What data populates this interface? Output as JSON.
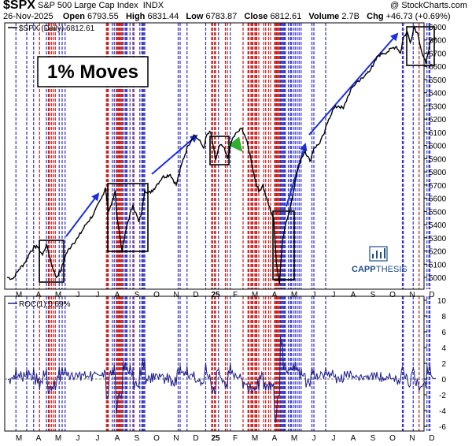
{
  "header": {
    "symbol": "$SPX",
    "name": "S&P 500 Large Cap Index",
    "exchange": "INDX",
    "credit": "@ StockCharts.com",
    "date": "26-Nov-2025",
    "open_label": "Open",
    "open": "6793.55",
    "high_label": "High",
    "high": "6831.44",
    "low_label": "Low",
    "low": "6783.87",
    "close_label": "Close",
    "close": "6812.61",
    "volume_label": "Volume",
    "volume": "2.7B",
    "chg_label": "Chg",
    "chg": "+46.73 (+0.69%)"
  },
  "annotations": {
    "title_box": "1% Moves",
    "logo_text_a": "CAPP",
    "logo_text_b": "THESIS"
  },
  "colors": {
    "up_line": "#3030c8",
    "down_line": "#c81818",
    "price": "#000000",
    "roc": "#1c1c8c",
    "arrow": "#1a2ee0",
    "green_arrow": "#2fae2f",
    "logo": "#1f4f86"
  },
  "chart_data": [
    {
      "type": "line",
      "series": [
        {
          "name": "$SPX (Daily) 6812.61"
        }
      ],
      "legend_text": "$SPX (Daily) 6812.61",
      "ylim": [
        4850,
        6950
      ],
      "yticks": [
        5000,
        5100,
        5200,
        5300,
        5400,
        5500,
        5600,
        5700,
        5800,
        5900,
        6000,
        6100,
        6200,
        6300,
        6400,
        6500,
        6600,
        6700,
        6800,
        6900
      ],
      "x_months": [
        "M",
        "A",
        "M",
        "J",
        "J",
        "A",
        "S",
        "O",
        "N",
        "D",
        "25",
        "F",
        "M",
        "A",
        "M",
        "J",
        "J",
        "A",
        "S",
        "O",
        "N",
        "D"
      ],
      "x_month_pos": [
        0.2,
        1.2,
        2.2,
        3.2,
        4.2,
        5.2,
        6.2,
        7.2,
        8.2,
        9.2,
        10.2,
        11.2,
        12.2,
        13.2,
        14.2,
        15.2,
        16.2,
        17.2,
        18.2,
        19.2,
        20.2,
        21.2
      ],
      "x_range": [
        0,
        21.8
      ],
      "anchors": [
        [
          0,
          5000
        ],
        [
          0.3,
          4990
        ],
        [
          0.6,
          5060
        ],
        [
          0.9,
          5110
        ],
        [
          1.2,
          5200
        ],
        [
          1.5,
          5240
        ],
        [
          1.8,
          5170
        ],
        [
          2.0,
          5250
        ],
        [
          2.3,
          5080
        ],
        [
          2.5,
          5000
        ],
        [
          2.75,
          5060
        ],
        [
          3.0,
          5180
        ],
        [
          3.3,
          5250
        ],
        [
          3.6,
          5300
        ],
        [
          4.0,
          5400
        ],
        [
          4.4,
          5480
        ],
        [
          4.8,
          5600
        ],
        [
          5.0,
          5680
        ],
        [
          5.15,
          5500
        ],
        [
          5.3,
          5550
        ],
        [
          5.5,
          5650
        ],
        [
          5.6,
          5450
        ],
        [
          5.85,
          5200
        ],
        [
          6.1,
          5400
        ],
        [
          6.4,
          5550
        ],
        [
          6.7,
          5420
        ],
        [
          6.85,
          5500
        ],
        [
          7.0,
          5660
        ],
        [
          7.3,
          5640
        ],
        [
          7.6,
          5700
        ],
        [
          7.9,
          5760
        ],
        [
          8.3,
          5780
        ],
        [
          8.6,
          5700
        ],
        [
          8.9,
          5870
        ],
        [
          9.2,
          6000
        ],
        [
          9.5,
          6080
        ],
        [
          9.7,
          6050
        ],
        [
          9.85,
          6020
        ],
        [
          10.0,
          5980
        ],
        [
          10.15,
          6080
        ],
        [
          10.35,
          6100
        ],
        [
          10.6,
          5890
        ],
        [
          10.8,
          6000
        ],
        [
          11.0,
          5990
        ],
        [
          11.2,
          5900
        ],
        [
          11.45,
          6050
        ],
        [
          11.7,
          6100
        ],
        [
          11.95,
          6130
        ],
        [
          12.15,
          6050
        ],
        [
          12.4,
          5900
        ],
        [
          12.6,
          5750
        ],
        [
          12.8,
          5650
        ],
        [
          13.0,
          5700
        ],
        [
          13.2,
          5600
        ],
        [
          13.4,
          5500
        ],
        [
          13.55,
          5450
        ],
        [
          13.7,
          5100
        ],
        [
          13.85,
          4950
        ],
        [
          14.0,
          5280
        ],
        [
          14.15,
          5400
        ],
        [
          14.35,
          5500
        ],
        [
          14.55,
          5650
        ],
        [
          14.75,
          5800
        ],
        [
          14.95,
          5900
        ],
        [
          15.15,
          5960
        ],
        [
          15.4,
          5880
        ],
        [
          15.6,
          5980
        ],
        [
          15.85,
          6010
        ],
        [
          16.1,
          6080
        ],
        [
          16.35,
          6200
        ],
        [
          16.6,
          6280
        ],
        [
          16.85,
          6300
        ],
        [
          17.1,
          6280
        ],
        [
          17.35,
          6380
        ],
        [
          17.6,
          6450
        ],
        [
          17.85,
          6490
        ],
        [
          18.1,
          6510
        ],
        [
          18.35,
          6560
        ],
        [
          18.6,
          6600
        ],
        [
          18.85,
          6680
        ],
        [
          19.1,
          6700
        ],
        [
          19.35,
          6710
        ],
        [
          19.6,
          6740
        ],
        [
          19.8,
          6750
        ],
        [
          20.0,
          6700
        ],
        [
          20.15,
          6820
        ],
        [
          20.35,
          6860
        ],
        [
          20.5,
          6780
        ],
        [
          20.7,
          6900
        ],
        [
          20.9,
          6840
        ],
        [
          21.1,
          6700
        ],
        [
          21.3,
          6620
        ],
        [
          21.5,
          6780
        ],
        [
          21.8,
          6812.61
        ]
      ]
    },
    {
      "type": "line",
      "series": [
        {
          "name": "ROC(1) 0.69%"
        }
      ],
      "legend_text": "ROC(1) 0.69%",
      "ylim": [
        -7,
        11
      ],
      "yticks": [
        -6,
        -4,
        -2,
        0,
        2,
        4,
        6,
        8,
        10
      ]
    }
  ]
}
